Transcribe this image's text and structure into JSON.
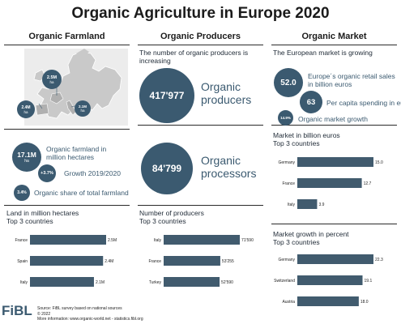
{
  "title": "Organic Agriculture in Europe 2020",
  "columns": {
    "farmland": "Organic Farmland",
    "producers": "Organic Producers",
    "market": "Organic Market"
  },
  "farmland": {
    "map_markers": [
      {
        "value": "2.5M",
        "unit": "ha"
      },
      {
        "value": "2.4M",
        "unit": "ha"
      },
      {
        "value": "2.1M",
        "unit": "ha"
      }
    ],
    "stats": [
      {
        "badge": "17.1M",
        "unit": "ha",
        "label": "Organic farmland in million hectares"
      },
      {
        "badge": "+3.7%",
        "label": "Growth 2019/2020"
      },
      {
        "badge": "3.4%",
        "label": "Organic share of total farmland"
      }
    ],
    "top_title": "Land in million hectares\nTop 3 countries"
  },
  "producers": {
    "intro": "The number of organic producers is increasing",
    "producers_value": "417'977",
    "producers_label": "Organic producers",
    "processors_value": "84'799",
    "processors_label": "Organic processors",
    "top_title": "Number of producers\nTop 3 countries"
  },
  "market": {
    "intro": "The European market is growing",
    "stats": [
      {
        "badge": "52.0",
        "label": "Europe´s organic retail sales in billion euros"
      },
      {
        "badge": "63",
        "label": "Per capita spending in euros"
      },
      {
        "badge": "14.9%",
        "label": "Organic market growth"
      }
    ],
    "sales_title": "Market in billion euros\nTop 3 countries",
    "growth_title": "Market growth in percent\nTop 3 countries"
  },
  "footer": {
    "logo": "FiBL",
    "source": "Source: FiBL survey based on national sources",
    "copyright": "© 2022",
    "more": "More information: www.organic-world.net - statistics.fibl.org"
  },
  "colors": {
    "accent": "#3b5a70",
    "bar": "#415b6e",
    "map_land": "#c8c8c8",
    "map_bg": "#eaeaea"
  },
  "chart_data": [
    {
      "type": "bar",
      "title": "Land in million hectares",
      "subtitle": "Top 3 countries",
      "categories": [
        "France",
        "Spain",
        "Italy"
      ],
      "values": [
        2.5,
        2.4,
        2.1
      ],
      "value_labels": [
        "2.5M",
        "2.4M",
        "2.1M"
      ]
    },
    {
      "type": "bar",
      "title": "Number of producers",
      "subtitle": "Top 3 countries",
      "categories": [
        "Italy",
        "France",
        "Turkey"
      ],
      "values": [
        71590,
        53255,
        52590
      ],
      "value_labels": [
        "71'590",
        "53'255",
        "52'590"
      ]
    },
    {
      "type": "bar",
      "title": "Market in billion euros",
      "subtitle": "Top 3 countries",
      "categories": [
        "Germany",
        "France",
        "Italy"
      ],
      "values": [
        15.0,
        12.7,
        3.9
      ],
      "value_labels": [
        "15.0",
        "12.7",
        "3.9"
      ]
    },
    {
      "type": "bar",
      "title": "Market growth in percent",
      "subtitle": "Top 3 countries",
      "categories": [
        "Germany",
        "Switzerland",
        "Austria"
      ],
      "values": [
        22.3,
        19.1,
        18.0
      ],
      "value_labels": [
        "22.3",
        "19.1",
        "18.0"
      ]
    }
  ]
}
